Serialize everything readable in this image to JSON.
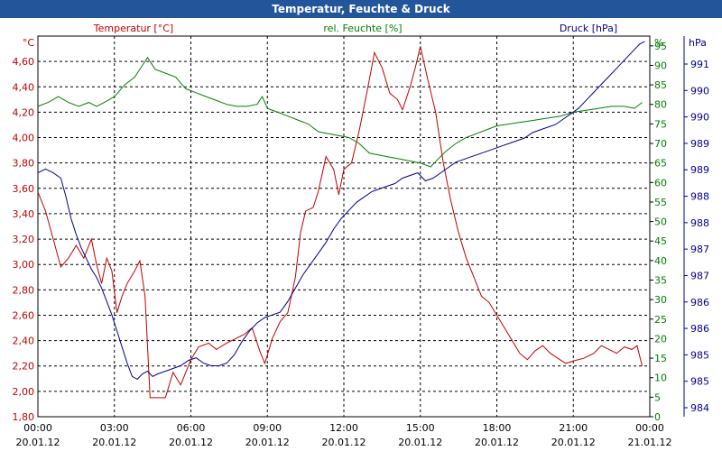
{
  "window": {
    "title": "Temperatur, Feuchte & Druck"
  },
  "chart_data": {
    "type": "line",
    "title": "Temperatur, Feuchte & Druck",
    "grid": true,
    "legend": "top",
    "x_ticks": [
      {
        "time": "00:00",
        "date": "20.01.12"
      },
      {
        "time": "03:00",
        "date": "20.01.12"
      },
      {
        "time": "06:00",
        "date": "20.01.12"
      },
      {
        "time": "09:00",
        "date": "20.01.12"
      },
      {
        "time": "12:00",
        "date": "20.01.12"
      },
      {
        "time": "15:00",
        "date": "20.01.12"
      },
      {
        "time": "18:00",
        "date": "20.01.12"
      },
      {
        "time": "21:00",
        "date": "20.01.12"
      },
      {
        "time": "00:00",
        "date": "21.01.12"
      }
    ],
    "xlim_hours": [
      0,
      24
    ],
    "axes": {
      "temperature": {
        "label": "Temperatur [°C]",
        "unit": "°C",
        "color": "#c00000",
        "ylim": [
          1.8,
          4.8
        ],
        "ticks": [
          "4,60",
          "4,40",
          "4,20",
          "4,00",
          "3,80",
          "3,60",
          "3,40",
          "3,20",
          "3,00",
          "2,80",
          "2,60",
          "2,40",
          "2,20",
          "2,00",
          "1,80"
        ]
      },
      "humidity": {
        "label": "rel. Feuchte [%]",
        "unit": "%",
        "color": "#008000",
        "ylim": [
          0,
          97.5
        ],
        "ticks": [
          "95",
          "90",
          "85",
          "80",
          "75",
          "70",
          "65",
          "60",
          "55",
          "50",
          "45",
          "40",
          "35",
          "30",
          "25",
          "20",
          "15",
          "10",
          "5",
          "0"
        ]
      },
      "pressure": {
        "label": "Druck [hPa]",
        "unit": "hPa",
        "color": "#000090",
        "ylim": [
          984.2,
          991.3
        ],
        "ticks": [
          "991",
          "990",
          "990",
          "989",
          "989",
          "988",
          "988",
          "987",
          "987",
          "986",
          "986",
          "985",
          "985",
          "984"
        ]
      }
    },
    "series": [
      {
        "name": "Temperatur [°C]",
        "axis": "temperature",
        "color": "#c00000",
        "points": [
          [
            0,
            3.57
          ],
          [
            0.3,
            3.42
          ],
          [
            0.6,
            3.2
          ],
          [
            0.9,
            2.98
          ],
          [
            1.2,
            3.05
          ],
          [
            1.5,
            3.15
          ],
          [
            1.8,
            3.05
          ],
          [
            2.1,
            3.2
          ],
          [
            2.3,
            3.0
          ],
          [
            2.5,
            2.85
          ],
          [
            2.7,
            3.05
          ],
          [
            2.9,
            2.95
          ],
          [
            3.1,
            2.62
          ],
          [
            3.3,
            2.75
          ],
          [
            3.5,
            2.85
          ],
          [
            3.8,
            2.95
          ],
          [
            4.0,
            3.03
          ],
          [
            4.2,
            2.75
          ],
          [
            4.4,
            1.95
          ],
          [
            4.7,
            1.95
          ],
          [
            5.0,
            1.95
          ],
          [
            5.3,
            2.15
          ],
          [
            5.6,
            2.05
          ],
          [
            6.0,
            2.25
          ],
          [
            6.3,
            2.35
          ],
          [
            6.7,
            2.38
          ],
          [
            7.0,
            2.33
          ],
          [
            7.4,
            2.38
          ],
          [
            7.8,
            2.42
          ],
          [
            8.1,
            2.45
          ],
          [
            8.4,
            2.5
          ],
          [
            8.7,
            2.32
          ],
          [
            8.9,
            2.22
          ],
          [
            9.2,
            2.42
          ],
          [
            9.5,
            2.55
          ],
          [
            9.8,
            2.62
          ],
          [
            10.1,
            2.9
          ],
          [
            10.3,
            3.25
          ],
          [
            10.5,
            3.42
          ],
          [
            10.8,
            3.45
          ],
          [
            11.0,
            3.58
          ],
          [
            11.3,
            3.85
          ],
          [
            11.6,
            3.75
          ],
          [
            11.8,
            3.55
          ],
          [
            12.0,
            3.75
          ],
          [
            12.3,
            3.8
          ],
          [
            12.6,
            4.05
          ],
          [
            12.9,
            4.35
          ],
          [
            13.2,
            4.67
          ],
          [
            13.5,
            4.55
          ],
          [
            13.8,
            4.35
          ],
          [
            14.1,
            4.3
          ],
          [
            14.3,
            4.22
          ],
          [
            14.6,
            4.4
          ],
          [
            14.8,
            4.55
          ],
          [
            15.0,
            4.72
          ],
          [
            15.3,
            4.45
          ],
          [
            15.6,
            4.2
          ],
          [
            15.9,
            3.8
          ],
          [
            16.2,
            3.5
          ],
          [
            16.5,
            3.25
          ],
          [
            16.8,
            3.05
          ],
          [
            17.1,
            2.9
          ],
          [
            17.4,
            2.75
          ],
          [
            17.7,
            2.7
          ],
          [
            18.0,
            2.6
          ],
          [
            18.3,
            2.5
          ],
          [
            18.6,
            2.4
          ],
          [
            18.9,
            2.3
          ],
          [
            19.2,
            2.25
          ],
          [
            19.5,
            2.32
          ],
          [
            19.8,
            2.36
          ],
          [
            20.1,
            2.3
          ],
          [
            20.4,
            2.26
          ],
          [
            20.7,
            2.22
          ],
          [
            21.0,
            2.24
          ],
          [
            21.4,
            2.26
          ],
          [
            21.8,
            2.3
          ],
          [
            22.1,
            2.36
          ],
          [
            22.4,
            2.33
          ],
          [
            22.7,
            2.3
          ],
          [
            23.0,
            2.35
          ],
          [
            23.3,
            2.33
          ],
          [
            23.5,
            2.36
          ],
          [
            23.7,
            2.2
          ]
        ]
      },
      {
        "name": "rel. Feuchte [%]",
        "axis": "humidity",
        "color": "#008000",
        "points": [
          [
            0,
            79.5
          ],
          [
            0.4,
            80.5
          ],
          [
            0.8,
            82
          ],
          [
            1.2,
            80.5
          ],
          [
            1.6,
            79.5
          ],
          [
            2.0,
            80.5
          ],
          [
            2.3,
            79.5
          ],
          [
            2.6,
            80.5
          ],
          [
            3.0,
            82
          ],
          [
            3.4,
            85
          ],
          [
            3.8,
            87
          ],
          [
            4.1,
            90
          ],
          [
            4.3,
            92
          ],
          [
            4.6,
            89
          ],
          [
            5.0,
            88
          ],
          [
            5.4,
            87
          ],
          [
            5.8,
            84
          ],
          [
            6.2,
            83
          ],
          [
            6.6,
            82
          ],
          [
            7.0,
            81
          ],
          [
            7.4,
            80
          ],
          [
            7.8,
            79.5
          ],
          [
            8.2,
            79.5
          ],
          [
            8.6,
            80
          ],
          [
            8.8,
            82
          ],
          [
            9.0,
            79
          ],
          [
            9.4,
            78
          ],
          [
            9.8,
            77
          ],
          [
            10.2,
            76
          ],
          [
            10.6,
            75
          ],
          [
            11.0,
            73
          ],
          [
            11.4,
            72.5
          ],
          [
            11.8,
            72
          ],
          [
            12.2,
            71.5
          ],
          [
            12.6,
            70
          ],
          [
            13.0,
            67.5
          ],
          [
            13.4,
            67
          ],
          [
            13.8,
            66.5
          ],
          [
            14.2,
            66
          ],
          [
            14.6,
            65.5
          ],
          [
            15.0,
            65
          ],
          [
            15.4,
            64
          ],
          [
            15.7,
            66
          ],
          [
            16.0,
            68
          ],
          [
            16.4,
            70
          ],
          [
            16.8,
            71.5
          ],
          [
            17.2,
            72.5
          ],
          [
            17.6,
            73.5
          ],
          [
            18.0,
            74.5
          ],
          [
            18.5,
            75
          ],
          [
            19.0,
            75.5
          ],
          [
            19.5,
            76
          ],
          [
            20.0,
            76.5
          ],
          [
            20.5,
            77
          ],
          [
            21.0,
            78
          ],
          [
            21.5,
            78.5
          ],
          [
            22.0,
            79
          ],
          [
            22.5,
            79.5
          ],
          [
            23.0,
            79.5
          ],
          [
            23.4,
            79
          ],
          [
            23.7,
            80.5
          ]
        ]
      },
      {
        "name": "Druck [hPa]",
        "axis": "pressure",
        "color": "#000090",
        "points": [
          [
            0,
            988.75
          ],
          [
            0.3,
            988.82
          ],
          [
            0.6,
            988.75
          ],
          [
            0.9,
            988.65
          ],
          [
            1.1,
            988.3
          ],
          [
            1.3,
            987.9
          ],
          [
            1.5,
            987.6
          ],
          [
            1.7,
            987.35
          ],
          [
            1.9,
            987.15
          ],
          [
            2.1,
            986.95
          ],
          [
            2.3,
            986.8
          ],
          [
            2.5,
            986.6
          ],
          [
            2.7,
            986.35
          ],
          [
            2.9,
            986.1
          ],
          [
            3.1,
            985.8
          ],
          [
            3.3,
            985.5
          ],
          [
            3.5,
            985.2
          ],
          [
            3.7,
            984.95
          ],
          [
            3.9,
            984.9
          ],
          [
            4.1,
            985.0
          ],
          [
            4.3,
            985.05
          ],
          [
            4.5,
            984.95
          ],
          [
            4.7,
            985.0
          ],
          [
            5.0,
            985.05
          ],
          [
            5.3,
            985.1
          ],
          [
            5.6,
            985.15
          ],
          [
            5.9,
            985.25
          ],
          [
            6.2,
            985.3
          ],
          [
            6.5,
            985.2
          ],
          [
            6.8,
            985.15
          ],
          [
            7.1,
            985.15
          ],
          [
            7.4,
            985.2
          ],
          [
            7.7,
            985.35
          ],
          [
            8.0,
            985.6
          ],
          [
            8.3,
            985.8
          ],
          [
            8.6,
            985.95
          ],
          [
            8.9,
            986.05
          ],
          [
            9.2,
            986.1
          ],
          [
            9.5,
            986.15
          ],
          [
            9.8,
            986.35
          ],
          [
            10.1,
            986.6
          ],
          [
            10.4,
            986.85
          ],
          [
            10.7,
            987.05
          ],
          [
            11.0,
            987.25
          ],
          [
            11.3,
            987.45
          ],
          [
            11.6,
            987.7
          ],
          [
            11.9,
            987.9
          ],
          [
            12.2,
            988.05
          ],
          [
            12.5,
            988.2
          ],
          [
            12.8,
            988.3
          ],
          [
            13.1,
            988.4
          ],
          [
            13.4,
            988.45
          ],
          [
            13.7,
            988.5
          ],
          [
            14.0,
            988.55
          ],
          [
            14.3,
            988.65
          ],
          [
            14.6,
            988.7
          ],
          [
            14.9,
            988.75
          ],
          [
            15.2,
            988.6
          ],
          [
            15.5,
            988.65
          ],
          [
            15.8,
            988.75
          ],
          [
            16.1,
            988.85
          ],
          [
            16.4,
            988.95
          ],
          [
            16.7,
            989.0
          ],
          [
            17.0,
            989.05
          ],
          [
            17.3,
            989.1
          ],
          [
            17.6,
            989.15
          ],
          [
            17.9,
            989.2
          ],
          [
            18.2,
            989.25
          ],
          [
            18.5,
            989.3
          ],
          [
            18.8,
            989.35
          ],
          [
            19.1,
            989.4
          ],
          [
            19.4,
            989.5
          ],
          [
            19.7,
            989.55
          ],
          [
            20.0,
            989.6
          ],
          [
            20.3,
            989.65
          ],
          [
            20.6,
            989.75
          ],
          [
            20.9,
            989.85
          ],
          [
            21.2,
            989.95
          ],
          [
            21.5,
            990.1
          ],
          [
            21.8,
            990.25
          ],
          [
            22.1,
            990.4
          ],
          [
            22.4,
            990.55
          ],
          [
            22.7,
            990.7
          ],
          [
            23.0,
            990.85
          ],
          [
            23.3,
            991.0
          ],
          [
            23.6,
            991.15
          ],
          [
            23.8,
            991.2
          ]
        ]
      }
    ]
  }
}
